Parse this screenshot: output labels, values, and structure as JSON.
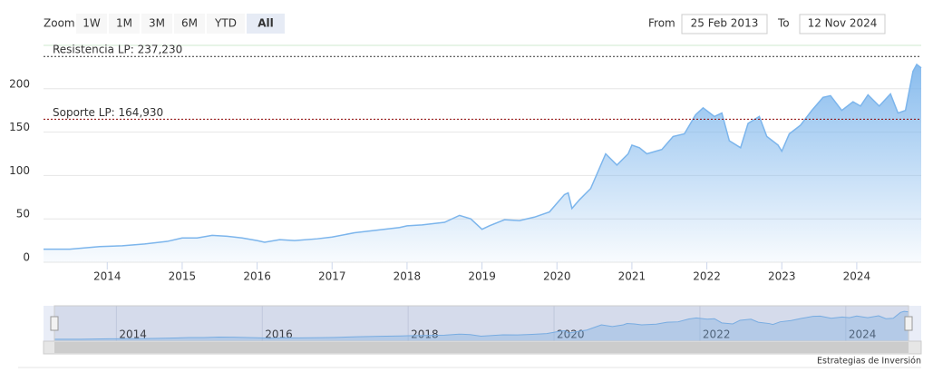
{
  "chart_data": {
    "type": "area",
    "ui": {
      "zoom_label": "Zoom",
      "buttons": [
        "1W",
        "1M",
        "3M",
        "6M",
        "YTD",
        "All"
      ],
      "selected": "All",
      "from_label": "From",
      "from": "25 Feb 2013",
      "to_label": "To",
      "to": "12 Nov 2024"
    },
    "credit": "Estrategias de Inversión",
    "x": [
      2013.15,
      2013.5,
      2013.9,
      2014.2,
      2014.5,
      2014.8,
      2015.0,
      2015.2,
      2015.4,
      2015.6,
      2015.8,
      2016.0,
      2016.1,
      2016.3,
      2016.5,
      2016.8,
      2017.0,
      2017.3,
      2017.6,
      2017.9,
      2018.0,
      2018.2,
      2018.5,
      2018.7,
      2018.85,
      2019.0,
      2019.1,
      2019.3,
      2019.5,
      2019.7,
      2019.9,
      2020.1,
      2020.15,
      2020.2,
      2020.3,
      2020.45,
      2020.55,
      2020.65,
      2020.8,
      2020.95,
      2021.0,
      2021.1,
      2021.2,
      2021.4,
      2021.55,
      2021.7,
      2021.85,
      2021.95,
      2022.1,
      2022.2,
      2022.3,
      2022.45,
      2022.55,
      2022.7,
      2022.8,
      2022.95,
      2023.0,
      2023.1,
      2023.25,
      2023.4,
      2023.55,
      2023.65,
      2023.8,
      2023.95,
      2024.05,
      2024.15,
      2024.3,
      2024.45,
      2024.55,
      2024.65,
      2024.75,
      2024.8,
      2024.86
    ],
    "series": [
      {
        "color": "#7cb5ec",
        "values": [
          15,
          15,
          18,
          19,
          21,
          24,
          28,
          28,
          31,
          30,
          28,
          25,
          23,
          26,
          25,
          27,
          29,
          34,
          37,
          40,
          42,
          43,
          46,
          54,
          50,
          38,
          42,
          49,
          48,
          52,
          58,
          78,
          80,
          62,
          72,
          85,
          105,
          125,
          112,
          125,
          135,
          132,
          125,
          130,
          145,
          148,
          170,
          178,
          168,
          172,
          140,
          132,
          160,
          168,
          145,
          135,
          128,
          148,
          158,
          175,
          190,
          192,
          175,
          185,
          180,
          193,
          180,
          194,
          172,
          175,
          220,
          228,
          224
        ]
      }
    ],
    "xlim": [
      2013.15,
      2024.86
    ],
    "ylim": [
      0,
      250
    ],
    "xticks": [
      2014,
      2015,
      2016,
      2017,
      2018,
      2019,
      2020,
      2021,
      2022,
      2023,
      2024
    ],
    "yticks": [
      0,
      50,
      100,
      150,
      200
    ],
    "grid": true,
    "plot_lines": [
      {
        "value": 237.23,
        "label": "Resistencia LP: 237,230",
        "color": "#333333"
      },
      {
        "value": 164.93,
        "label": "Soporte LP: 164,930",
        "color": "#8b0000"
      }
    ],
    "navigator": {
      "xticks": [
        2014,
        2016,
        2018,
        2020,
        2022,
        2024
      ]
    }
  }
}
